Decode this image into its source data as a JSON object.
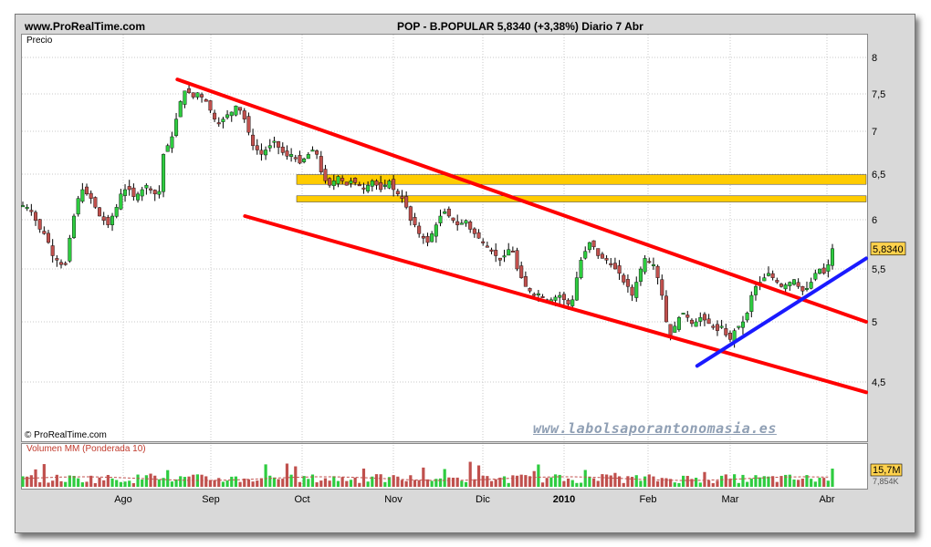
{
  "header": {
    "site": "www.ProRealTime.com",
    "title": "POP - B.POPULAR   5,8340 (+3,38%)   Diario  7 Abr"
  },
  "labels": {
    "price_panel": "Precio",
    "copyright": "© ProRealTime.com",
    "volume_panel": "Volumen MM (Ponderada 10)",
    "watermark": "www.labolsaporantonomasia.es"
  },
  "colors": {
    "up": "#2ecc40",
    "down": "#c0504d",
    "channel": "#ff0000",
    "support": "#1a1aff",
    "zone": "#ffcc00"
  },
  "chart_data": {
    "type": "candlestick",
    "price_axis": {
      "ticks": [
        "8",
        "7,5",
        "7",
        "6,5",
        "6",
        "5,5",
        "5",
        "4,5"
      ],
      "ylim": [
        4.0,
        8.3
      ]
    },
    "x_ticks": [
      "Ago",
      "Sep",
      "Oct",
      "Nov",
      "Dic",
      "2010",
      "Feb",
      "Mar",
      "Abr"
    ],
    "last_price_label": "5,8340",
    "volume_labels": [
      "15,7M",
      "7,854K"
    ],
    "closes_approx": [
      6.32,
      6.3,
      6.25,
      6.15,
      6.05,
      6.0,
      5.9,
      5.75,
      5.7,
      5.65,
      5.65,
      5.95,
      6.2,
      6.4,
      6.5,
      6.45,
      6.4,
      6.3,
      6.2,
      6.15,
      6.1,
      6.2,
      6.3,
      6.45,
      6.5,
      6.5,
      6.42,
      6.45,
      6.5,
      6.55,
      6.5,
      6.45,
      6.48,
      6.9,
      7.0,
      7.1,
      7.3,
      7.5,
      7.62,
      7.6,
      7.55,
      7.6,
      7.55,
      7.5,
      7.4,
      7.3,
      7.25,
      7.3,
      7.35,
      7.38,
      7.45,
      7.4,
      7.3,
      7.15,
      7.0,
      6.95,
      6.9,
      6.95,
      7.0,
      7.05,
      6.98,
      6.92,
      6.88,
      6.9,
      6.85,
      6.8,
      6.85,
      6.9,
      6.95,
      6.9,
      6.7,
      6.6,
      6.55,
      6.6,
      6.65,
      6.6,
      6.55,
      6.6,
      6.58,
      6.55,
      6.52,
      6.55,
      6.6,
      6.55,
      6.5,
      6.55,
      6.6,
      6.5,
      6.45,
      6.4,
      6.3,
      6.15,
      6.1,
      6.0,
      5.95,
      5.9,
      6.0,
      6.1,
      6.2,
      6.25,
      6.2,
      6.15,
      6.1,
      6.12,
      6.15,
      6.05,
      6.0,
      5.95,
      5.9,
      5.85,
      5.8,
      5.75,
      5.7,
      5.75,
      5.82,
      5.8,
      5.6,
      5.5,
      5.4,
      5.35,
      5.3,
      5.32,
      5.28,
      5.25,
      5.25,
      5.28,
      5.3,
      5.25,
      5.2,
      5.25,
      5.5,
      5.7,
      5.8,
      5.9,
      5.85,
      5.75,
      5.72,
      5.7,
      5.65,
      5.6,
      5.55,
      5.45,
      5.4,
      5.3,
      5.45,
      5.6,
      5.72,
      5.68,
      5.65,
      5.5,
      5.3,
      5.0,
      4.85,
      4.95,
      5.05,
      5.1,
      5.05,
      4.98,
      5.0,
      5.05,
      5.02,
      4.98,
      4.95,
      4.9,
      4.95,
      4.85,
      4.8,
      4.9,
      4.95,
      5.0,
      5.1,
      5.3,
      5.4,
      5.45,
      5.5,
      5.55,
      5.5,
      5.45,
      5.4,
      5.42,
      5.45,
      5.48,
      5.4,
      5.35,
      5.38,
      5.45,
      5.55,
      5.6,
      5.55,
      5.65,
      5.83
    ],
    "trendlines": [
      {
        "name": "channel-upper",
        "points": [
          [
            0.185,
            7.75
          ],
          [
            1.0,
            5.0
          ]
        ]
      },
      {
        "name": "channel-lower",
        "points": [
          [
            0.265,
            6.2
          ],
          [
            1.0,
            4.2
          ]
        ]
      },
      {
        "name": "support",
        "points": [
          [
            0.8,
            4.5
          ],
          [
            1.0,
            5.72
          ]
        ]
      }
    ],
    "zones": [
      {
        "from": 6.56,
        "to": 6.67
      },
      {
        "from": 6.36,
        "to": 6.43
      }
    ]
  }
}
